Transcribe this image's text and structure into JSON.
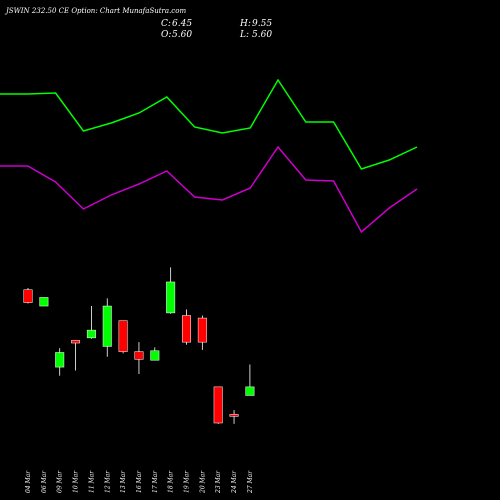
{
  "chart_data": {
    "type": "candlestick",
    "title": "JSWIN 232.50 CE Option: Chart MunafaSutra.com",
    "summary": {
      "c_label": "C:",
      "c_value": "6.45",
      "h_label": "H:",
      "h_value": "9.55",
      "o_label": "O:",
      "o_value": "5.60",
      "l_label": "L:",
      "l_value": "5.60"
    },
    "colors": {
      "up": "#00ff00",
      "down": "#ff0000",
      "line_upper": "#00ff00",
      "line_lower": "#cc00cc",
      "background": "#000000",
      "text": "#ffffff"
    },
    "x": [
      "04 Mar",
      "06 Mar",
      "09 Mar",
      "10 Mar",
      "11 Mar",
      "12 Mar",
      "13 Mar",
      "16 Mar",
      "17 Mar",
      "18 Mar",
      "19 Mar",
      "20 Mar",
      "23 Mar",
      "24 Mar",
      "27 Mar"
    ],
    "candles": [
      {
        "o": 15.5,
        "h": 15.7,
        "l": 13.9,
        "c": 14.0
      },
      {
        "o": 13.6,
        "h": 14.6,
        "l": 13.6,
        "c": 14.6
      },
      {
        "o": 6.5,
        "h": 8.7,
        "l": 5.5,
        "c": 8.2
      },
      {
        "o": 9.6,
        "h": 9.6,
        "l": 6.1,
        "c": 9.3
      },
      {
        "o": 9.9,
        "h": 13.6,
        "l": 9.8,
        "c": 10.8
      },
      {
        "o": 8.9,
        "h": 14.5,
        "l": 7.7,
        "c": 13.6
      },
      {
        "o": 11.9,
        "h": 11.9,
        "l": 8.1,
        "c": 8.3
      },
      {
        "o": 8.3,
        "h": 9.4,
        "l": 5.7,
        "c": 7.4
      },
      {
        "o": 7.3,
        "h": 8.8,
        "l": 7.3,
        "c": 8.4
      },
      {
        "o": 12.8,
        "h": 18.1,
        "l": 12.7,
        "c": 16.4
      },
      {
        "o": 12.5,
        "h": 13.2,
        "l": 9.1,
        "c": 9.4
      },
      {
        "o": 12.2,
        "h": 12.5,
        "l": 8.5,
        "c": 9.4
      },
      {
        "o": 4.2,
        "h": 4.2,
        "l": -0.1,
        "c": 0.0
      },
      {
        "o": 1.0,
        "h": 1.5,
        "l": -0.1,
        "c": 0.8
      },
      {
        "o": 3.2,
        "h": 6.8,
        "l": 3.2,
        "c": 4.2
      }
    ],
    "line_upper": [
      94,
      94,
      93,
      131,
      123,
      113,
      97,
      127,
      133,
      128,
      80,
      122,
      122,
      169,
      160,
      147
    ],
    "line_lower": [
      166,
      166,
      182,
      209,
      195,
      184,
      171,
      197,
      200,
      188,
      147,
      180,
      181,
      232,
      208,
      189
    ]
  }
}
